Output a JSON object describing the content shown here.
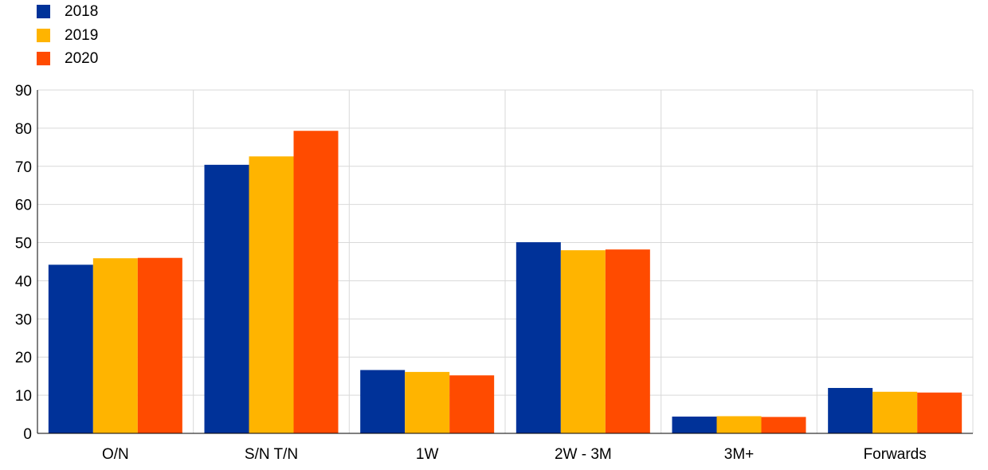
{
  "chart_data": {
    "type": "bar",
    "title": "",
    "xlabel": "",
    "ylabel": "",
    "categories": [
      "O/N",
      "S/N T/N",
      "1W",
      "2W - 3M",
      "3M+",
      "Forwards"
    ],
    "series": [
      {
        "name": "2018",
        "color": "#003299",
        "values": [
          44.2,
          70.4,
          16.6,
          50.1,
          4.4,
          11.9
        ]
      },
      {
        "name": "2019",
        "color": "#FFB400",
        "values": [
          45.9,
          72.6,
          16.1,
          48.0,
          4.5,
          10.9
        ]
      },
      {
        "name": "2020",
        "color": "#FF4B00",
        "values": [
          46.0,
          79.3,
          15.2,
          48.2,
          4.3,
          10.7
        ]
      }
    ],
    "ylim": [
      0,
      90
    ],
    "yticks": [
      "0",
      "10",
      "20",
      "30",
      "40",
      "50",
      "60",
      "70",
      "80",
      "90"
    ],
    "grid": true,
    "legend_position": "top-left"
  }
}
